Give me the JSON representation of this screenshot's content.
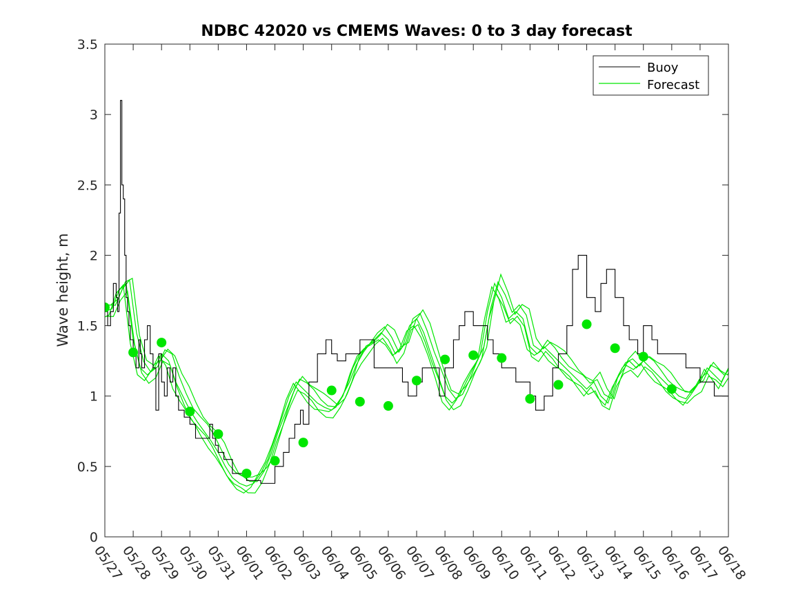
{
  "chart_data": {
    "type": "line",
    "title": "NDBC 42020 vs CMEMS Waves: 0 to 3 day forecast",
    "xlabel": "",
    "ylabel": "Wave height, m",
    "ylim": [
      0,
      3.5
    ],
    "yticks": [
      "0",
      "0.5",
      "1",
      "1.5",
      "2",
      "2.5",
      "3",
      "3.5"
    ],
    "xlim": [
      0,
      22
    ],
    "xtick_labels": [
      "05/27",
      "05/28",
      "05/29",
      "05/30",
      "05/31",
      "06/01",
      "06/02",
      "06/03",
      "06/04",
      "06/05",
      "06/06",
      "06/07",
      "06/08",
      "06/09",
      "06/10",
      "06/11",
      "06/12",
      "06/13",
      "06/14",
      "06/15",
      "06/16",
      "06/17",
      "06/18"
    ],
    "grid": false,
    "legend_position": "top-right",
    "colors": {
      "buoy": "#000000",
      "forecast": "#00e600",
      "markers": "#00e600"
    },
    "series": [
      {
        "name": "Buoy",
        "x": [
          0.0,
          0.1,
          0.2,
          0.3,
          0.4,
          0.45,
          0.5,
          0.55,
          0.6,
          0.65,
          0.7,
          0.75,
          0.8,
          0.85,
          0.9,
          1.0,
          1.1,
          1.2,
          1.25,
          1.3,
          1.4,
          1.5,
          1.6,
          1.7,
          1.8,
          1.9,
          2.0,
          2.1,
          2.2,
          2.3,
          2.4,
          2.5,
          2.6,
          2.8,
          3.0,
          3.2,
          3.5,
          3.7,
          3.8,
          3.9,
          4.0,
          4.2,
          4.5,
          5.0,
          5.5,
          6.0,
          6.3,
          6.5,
          6.7,
          6.9,
          7.0,
          7.2,
          7.5,
          7.8,
          8.0,
          8.2,
          8.5,
          9.0,
          9.5,
          10.0,
          10.3,
          10.5,
          10.7,
          10.9,
          11.0,
          11.2,
          11.5,
          11.8,
          12.0,
          12.3,
          12.5,
          12.7,
          13.0,
          13.3,
          13.5,
          13.7,
          14.0,
          14.5,
          15.0,
          15.2,
          15.5,
          15.8,
          16.0,
          16.3,
          16.5,
          16.7,
          17.0,
          17.3,
          17.5,
          17.7,
          18.0,
          18.3,
          18.5,
          18.8,
          19.0,
          19.3,
          19.5,
          20.0,
          20.5,
          21.0,
          21.5,
          22.0
        ],
        "y": [
          1.6,
          1.5,
          1.6,
          1.8,
          1.7,
          1.6,
          2.3,
          3.1,
          2.5,
          2.4,
          2.0,
          1.7,
          1.6,
          1.5,
          1.4,
          1.3,
          1.2,
          1.4,
          1.3,
          1.2,
          1.4,
          1.5,
          1.3,
          1.2,
          0.9,
          1.3,
          1.1,
          1.0,
          1.2,
          1.1,
          1.2,
          1.0,
          0.9,
          0.85,
          0.8,
          0.7,
          0.7,
          0.8,
          0.7,
          0.65,
          0.6,
          0.55,
          0.45,
          0.4,
          0.38,
          0.5,
          0.6,
          0.7,
          0.8,
          0.9,
          0.8,
          1.1,
          1.3,
          1.4,
          1.3,
          1.25,
          1.3,
          1.4,
          1.2,
          1.2,
          1.2,
          1.1,
          1.0,
          1.0,
          1.1,
          1.2,
          1.2,
          1.0,
          1.2,
          1.4,
          1.5,
          1.6,
          1.5,
          1.5,
          1.4,
          1.3,
          1.2,
          1.1,
          1.0,
          0.9,
          1.0,
          1.2,
          1.3,
          1.5,
          1.9,
          2.0,
          1.7,
          1.6,
          1.8,
          1.9,
          1.7,
          1.5,
          1.4,
          1.3,
          1.5,
          1.4,
          1.3,
          1.3,
          1.2,
          1.1,
          1.0,
          1.0
        ]
      },
      {
        "name": "Forecast",
        "x": [
          0.0,
          0.25,
          0.5,
          0.75,
          1.0,
          1.25,
          1.5,
          1.75,
          2.0,
          2.25,
          2.5,
          2.75,
          3.0,
          3.25,
          3.5,
          3.75,
          4.0,
          4.25,
          4.5,
          4.75,
          5.0,
          5.25,
          5.5,
          5.75,
          6.0,
          6.25,
          6.5,
          6.75,
          7.0,
          7.25,
          7.5,
          7.75,
          8.0,
          8.25,
          8.5,
          8.75,
          9.0,
          9.25,
          9.5,
          9.75,
          10.0,
          10.25,
          10.5,
          10.75,
          11.0,
          11.25,
          11.5,
          11.75,
          12.0,
          12.25,
          12.5,
          12.75,
          13.0,
          13.25,
          13.5,
          13.75,
          14.0,
          14.25,
          14.5,
          14.75,
          15.0,
          15.25,
          15.5,
          15.75,
          16.0,
          16.25,
          16.5,
          16.75,
          17.0,
          17.25,
          17.5,
          17.75,
          18.0,
          18.25,
          18.5,
          18.75,
          19.0,
          19.25,
          19.5,
          19.75,
          20.0,
          20.25,
          20.5,
          20.75,
          21.0,
          21.25,
          21.5,
          21.75,
          22.0
        ],
        "y": [
          1.6,
          1.62,
          1.75,
          1.8,
          1.4,
          1.2,
          1.15,
          1.2,
          1.3,
          1.25,
          1.1,
          1.0,
          0.9,
          0.82,
          0.75,
          0.68,
          0.6,
          0.5,
          0.42,
          0.38,
          0.36,
          0.38,
          0.45,
          0.55,
          0.7,
          0.85,
          1.0,
          1.1,
          1.05,
          1.0,
          0.95,
          0.92,
          0.9,
          0.95,
          1.05,
          1.2,
          1.3,
          1.35,
          1.4,
          1.45,
          1.4,
          1.3,
          1.35,
          1.5,
          1.55,
          1.45,
          1.3,
          1.15,
          1.0,
          0.95,
          1.0,
          1.1,
          1.2,
          1.3,
          1.6,
          1.8,
          1.7,
          1.55,
          1.6,
          1.55,
          1.35,
          1.3,
          1.35,
          1.3,
          1.25,
          1.2,
          1.15,
          1.1,
          1.05,
          1.1,
          1.0,
          0.95,
          1.1,
          1.2,
          1.25,
          1.2,
          1.25,
          1.2,
          1.15,
          1.1,
          1.05,
          1.0,
          0.98,
          1.05,
          1.1,
          1.2,
          1.15,
          1.1,
          1.2
        ]
      }
    ],
    "markers": {
      "name": "Forecast daily markers",
      "x": [
        0,
        1,
        2,
        3,
        4,
        5,
        6,
        7,
        8,
        9,
        10,
        11,
        12,
        13,
        14,
        15,
        16,
        17,
        18,
        19,
        20
      ],
      "y": [
        1.63,
        1.31,
        1.38,
        0.89,
        0.73,
        0.45,
        0.54,
        0.67,
        1.04,
        0.96,
        0.93,
        1.11,
        1.26,
        1.29,
        1.27,
        0.98,
        1.08,
        1.51,
        1.34,
        1.28,
        1.05
      ]
    }
  }
}
